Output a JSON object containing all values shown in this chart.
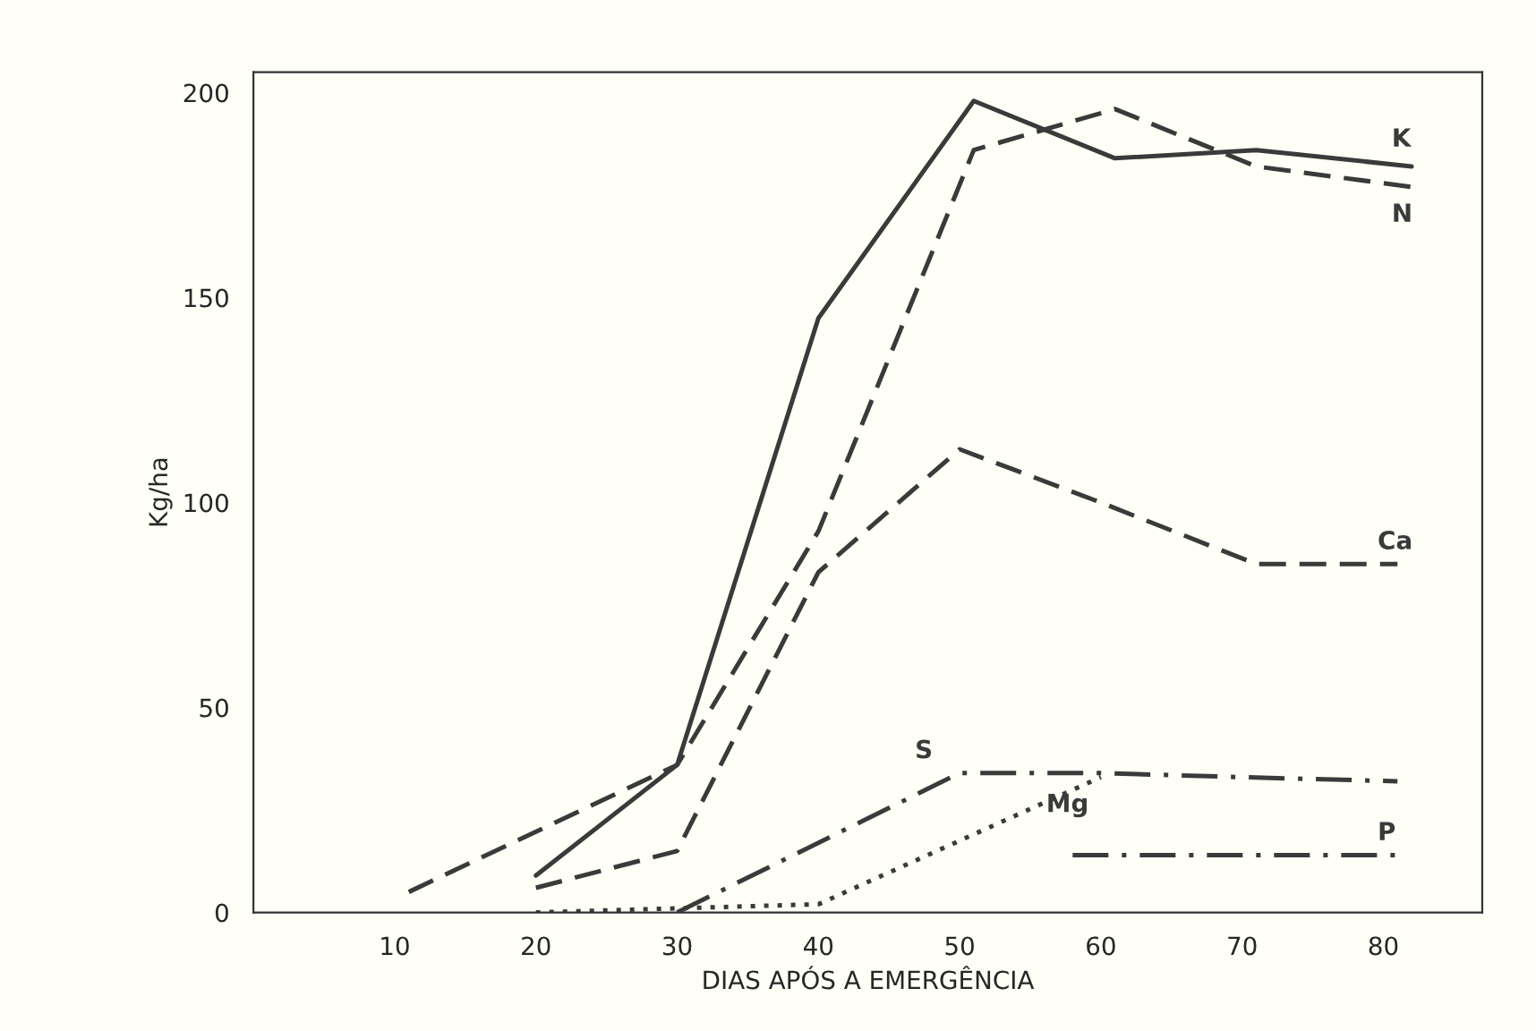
{
  "chart_data": {
    "type": "line",
    "xlabel": "DIAS APÓS A EMERGÊNCIA",
    "ylabel": "Kg/ha",
    "xlim": [
      0,
      87
    ],
    "ylim": [
      0,
      205
    ],
    "xticks": [
      10,
      20,
      30,
      40,
      50,
      60,
      70,
      80
    ],
    "yticks": [
      0,
      50,
      100,
      150,
      200
    ],
    "grid": false,
    "legend": false,
    "marker": "none",
    "series": [
      {
        "name": "K",
        "color": "#3a3a3a",
        "line_style": "solid",
        "x": [
          20,
          30,
          40,
          51,
          61,
          71,
          82
        ],
        "values": [
          9,
          36,
          145,
          198,
          184,
          186,
          182
        ]
      },
      {
        "name": "N",
        "color": "#3a3a3a",
        "line_style": "dashed",
        "x": [
          11,
          30,
          40,
          51,
          61,
          71,
          82
        ],
        "values": [
          5,
          36,
          93,
          186,
          196,
          182,
          177
        ]
      },
      {
        "name": "Ca",
        "color": "#3a3a3a",
        "line_style": "dashed",
        "x": [
          20,
          30,
          40,
          50,
          60,
          71,
          81
        ],
        "values": [
          6,
          15,
          83,
          113,
          100,
          85,
          85
        ]
      },
      {
        "name": "S",
        "color": "#3a3a3a",
        "line_style": "dashdot",
        "x": [
          30,
          40,
          50,
          60,
          70,
          81
        ],
        "values": [
          0,
          17,
          34,
          34,
          33,
          32
        ]
      },
      {
        "name": "Mg",
        "color": "#3a3a3a",
        "line_style": "dotted",
        "x": [
          20,
          30,
          40,
          60
        ],
        "values": [
          0,
          1,
          2,
          33
        ]
      },
      {
        "name": "P",
        "color": "#3a3a3a",
        "line_style": "dashdot",
        "x": [
          58,
          81
        ],
        "values": [
          14,
          14
        ]
      }
    ]
  }
}
